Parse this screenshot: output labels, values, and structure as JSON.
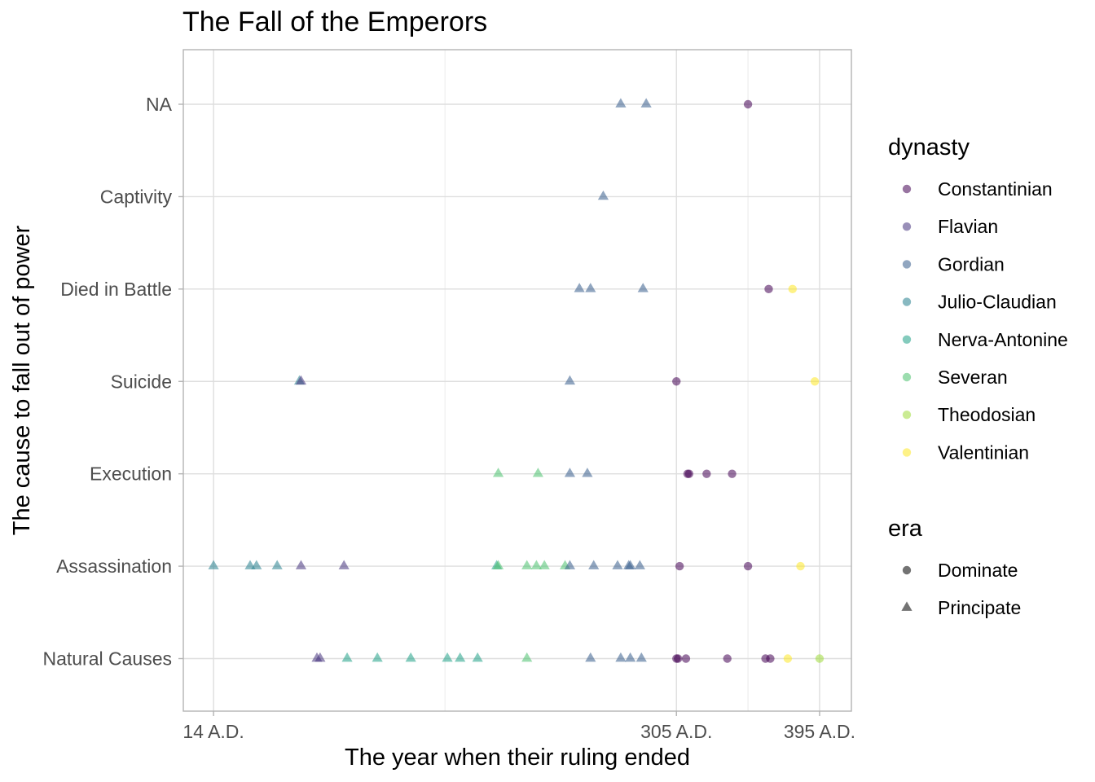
{
  "chart_data": {
    "type": "scatter",
    "title": "The Fall of the Emperors",
    "xlabel": "The year when their ruling ended",
    "ylabel": "The cause to fall out of power",
    "x_ticks": [
      {
        "value": 14,
        "label": "14 A.D."
      },
      {
        "value": 305,
        "label": "305 A.D."
      },
      {
        "value": 395,
        "label": "395 A.D."
      }
    ],
    "xlim": [
      -5,
      415
    ],
    "categories": [
      "Natural Causes",
      "Assassination",
      "Execution",
      "Suicide",
      "Died in Battle",
      "Captivity",
      "NA"
    ],
    "grid": true,
    "legend_position": "right",
    "dynasty_legend": {
      "title": "dynasty",
      "items": [
        {
          "name": "Constantinian",
          "color": "#440154"
        },
        {
          "name": "Flavian",
          "color": "#46337E"
        },
        {
          "name": "Gordian",
          "color": "#365C8D"
        },
        {
          "name": "Julio-Claudian",
          "color": "#277F8E"
        },
        {
          "name": "Nerva-Antonine",
          "color": "#1FA187"
        },
        {
          "name": "Severan",
          "color": "#4AC16D"
        },
        {
          "name": "Theodosian",
          "color": "#9FDA3A"
        },
        {
          "name": "Valentinian",
          "color": "#FDE725"
        }
      ]
    },
    "era_legend": {
      "title": "era",
      "items": [
        {
          "name": "Dominate",
          "shape": "circle"
        },
        {
          "name": "Principate",
          "shape": "triangle"
        }
      ]
    },
    "points": [
      {
        "x": 286,
        "y": "NA",
        "dynasty": "Gordian",
        "era": "Principate"
      },
      {
        "x": 270,
        "y": "NA",
        "dynasty": "Gordian",
        "era": "Principate"
      },
      {
        "x": 350,
        "y": "NA",
        "dynasty": "Constantinian",
        "era": "Dominate"
      },
      {
        "x": 259,
        "y": "Captivity",
        "dynasty": "Gordian",
        "era": "Principate"
      },
      {
        "x": 244,
        "y": "Died in Battle",
        "dynasty": "Gordian",
        "era": "Principate"
      },
      {
        "x": 251,
        "y": "Died in Battle",
        "dynasty": "Gordian",
        "era": "Principate"
      },
      {
        "x": 284,
        "y": "Died in Battle",
        "dynasty": "Gordian",
        "era": "Principate"
      },
      {
        "x": 363,
        "y": "Died in Battle",
        "dynasty": "Constantinian",
        "era": "Dominate"
      },
      {
        "x": 378,
        "y": "Died in Battle",
        "dynasty": "Valentinian",
        "era": "Dominate"
      },
      {
        "x": 68,
        "y": "Suicide",
        "dynasty": "Julio-Claudian",
        "era": "Principate"
      },
      {
        "x": 69,
        "y": "Suicide",
        "dynasty": "Flavian",
        "era": "Principate"
      },
      {
        "x": 238,
        "y": "Suicide",
        "dynasty": "Gordian",
        "era": "Principate"
      },
      {
        "x": 305,
        "y": "Suicide",
        "dynasty": "Constantinian",
        "era": "Dominate"
      },
      {
        "x": 392,
        "y": "Suicide",
        "dynasty": "Valentinian",
        "era": "Dominate"
      },
      {
        "x": 193,
        "y": "Execution",
        "dynasty": "Severan",
        "era": "Principate"
      },
      {
        "x": 218,
        "y": "Execution",
        "dynasty": "Severan",
        "era": "Principate"
      },
      {
        "x": 238,
        "y": "Execution",
        "dynasty": "Gordian",
        "era": "Principate"
      },
      {
        "x": 249,
        "y": "Execution",
        "dynasty": "Gordian",
        "era": "Principate"
      },
      {
        "x": 312,
        "y": "Execution",
        "dynasty": "Constantinian",
        "era": "Dominate"
      },
      {
        "x": 313,
        "y": "Execution",
        "dynasty": "Constantinian",
        "era": "Dominate"
      },
      {
        "x": 324,
        "y": "Execution",
        "dynasty": "Constantinian",
        "era": "Dominate"
      },
      {
        "x": 340,
        "y": "Execution",
        "dynasty": "Constantinian",
        "era": "Dominate"
      },
      {
        "x": 14,
        "y": "Assassination",
        "dynasty": "Julio-Claudian",
        "era": "Principate"
      },
      {
        "x": 37,
        "y": "Assassination",
        "dynasty": "Julio-Claudian",
        "era": "Principate"
      },
      {
        "x": 41,
        "y": "Assassination",
        "dynasty": "Julio-Claudian",
        "era": "Principate"
      },
      {
        "x": 54,
        "y": "Assassination",
        "dynasty": "Julio-Claudian",
        "era": "Principate"
      },
      {
        "x": 69,
        "y": "Assassination",
        "dynasty": "Flavian",
        "era": "Principate"
      },
      {
        "x": 96,
        "y": "Assassination",
        "dynasty": "Flavian",
        "era": "Principate"
      },
      {
        "x": 192,
        "y": "Assassination",
        "dynasty": "Nerva-Antonine",
        "era": "Principate"
      },
      {
        "x": 193,
        "y": "Assassination",
        "dynasty": "Severan",
        "era": "Principate"
      },
      {
        "x": 211,
        "y": "Assassination",
        "dynasty": "Severan",
        "era": "Principate"
      },
      {
        "x": 217,
        "y": "Assassination",
        "dynasty": "Severan",
        "era": "Principate"
      },
      {
        "x": 222,
        "y": "Assassination",
        "dynasty": "Severan",
        "era": "Principate"
      },
      {
        "x": 235,
        "y": "Assassination",
        "dynasty": "Severan",
        "era": "Principate"
      },
      {
        "x": 238,
        "y": "Assassination",
        "dynasty": "Gordian",
        "era": "Principate"
      },
      {
        "x": 253,
        "y": "Assassination",
        "dynasty": "Gordian",
        "era": "Principate"
      },
      {
        "x": 268,
        "y": "Assassination",
        "dynasty": "Gordian",
        "era": "Principate"
      },
      {
        "x": 275,
        "y": "Assassination",
        "dynasty": "Gordian",
        "era": "Principate"
      },
      {
        "x": 276,
        "y": "Assassination",
        "dynasty": "Gordian",
        "era": "Principate"
      },
      {
        "x": 282,
        "y": "Assassination",
        "dynasty": "Gordian",
        "era": "Principate"
      },
      {
        "x": 307,
        "y": "Assassination",
        "dynasty": "Constantinian",
        "era": "Dominate"
      },
      {
        "x": 350,
        "y": "Assassination",
        "dynasty": "Constantinian",
        "era": "Dominate"
      },
      {
        "x": 383,
        "y": "Assassination",
        "dynasty": "Valentinian",
        "era": "Dominate"
      },
      {
        "x": 79,
        "y": "Natural Causes",
        "dynasty": "Flavian",
        "era": "Principate"
      },
      {
        "x": 81,
        "y": "Natural Causes",
        "dynasty": "Flavian",
        "era": "Principate"
      },
      {
        "x": 98,
        "y": "Natural Causes",
        "dynasty": "Nerva-Antonine",
        "era": "Principate"
      },
      {
        "x": 117,
        "y": "Natural Causes",
        "dynasty": "Nerva-Antonine",
        "era": "Principate"
      },
      {
        "x": 138,
        "y": "Natural Causes",
        "dynasty": "Nerva-Antonine",
        "era": "Principate"
      },
      {
        "x": 161,
        "y": "Natural Causes",
        "dynasty": "Nerva-Antonine",
        "era": "Principate"
      },
      {
        "x": 169,
        "y": "Natural Causes",
        "dynasty": "Nerva-Antonine",
        "era": "Principate"
      },
      {
        "x": 180,
        "y": "Natural Causes",
        "dynasty": "Nerva-Antonine",
        "era": "Principate"
      },
      {
        "x": 211,
        "y": "Natural Causes",
        "dynasty": "Severan",
        "era": "Principate"
      },
      {
        "x": 251,
        "y": "Natural Causes",
        "dynasty": "Gordian",
        "era": "Principate"
      },
      {
        "x": 270,
        "y": "Natural Causes",
        "dynasty": "Gordian",
        "era": "Principate"
      },
      {
        "x": 276,
        "y": "Natural Causes",
        "dynasty": "Gordian",
        "era": "Principate"
      },
      {
        "x": 283,
        "y": "Natural Causes",
        "dynasty": "Gordian",
        "era": "Principate"
      },
      {
        "x": 305,
        "y": "Natural Causes",
        "dynasty": "Constantinian",
        "era": "Dominate"
      },
      {
        "x": 306,
        "y": "Natural Causes",
        "dynasty": "Constantinian",
        "era": "Dominate"
      },
      {
        "x": 311,
        "y": "Natural Causes",
        "dynasty": "Constantinian",
        "era": "Dominate"
      },
      {
        "x": 337,
        "y": "Natural Causes",
        "dynasty": "Constantinian",
        "era": "Dominate"
      },
      {
        "x": 361,
        "y": "Natural Causes",
        "dynasty": "Constantinian",
        "era": "Dominate"
      },
      {
        "x": 364,
        "y": "Natural Causes",
        "dynasty": "Constantinian",
        "era": "Dominate"
      },
      {
        "x": 375,
        "y": "Natural Causes",
        "dynasty": "Valentinian",
        "era": "Dominate"
      },
      {
        "x": 395,
        "y": "Natural Causes",
        "dynasty": "Theodosian",
        "era": "Dominate"
      }
    ]
  }
}
